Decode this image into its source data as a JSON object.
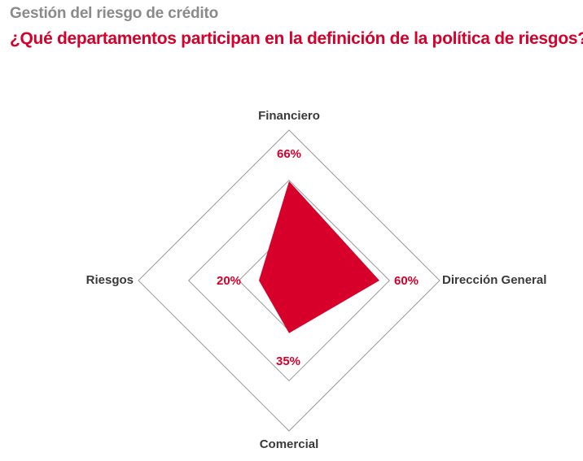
{
  "header": {
    "kicker": "Gestión del riesgo de crédito",
    "title": "¿Qué departamentos participan en la definición de la política de riesgos?"
  },
  "colors": {
    "accent": "#d6002a",
    "grid": "#9a9a9a",
    "text": "#3a3a3a",
    "kicker": "#8a8a8a"
  },
  "chart_data": {
    "type": "radar",
    "title": "¿Qué departamentos participan en la definición de la política de riesgos?",
    "axes": [
      "Financiero",
      "Dirección General",
      "Comercial",
      "Riesgos"
    ],
    "values": [
      66,
      60,
      35,
      20
    ],
    "value_labels": [
      "66%",
      "60%",
      "35%",
      "20%"
    ],
    "unit": "%",
    "range": [
      0,
      100
    ],
    "rings": 3
  }
}
